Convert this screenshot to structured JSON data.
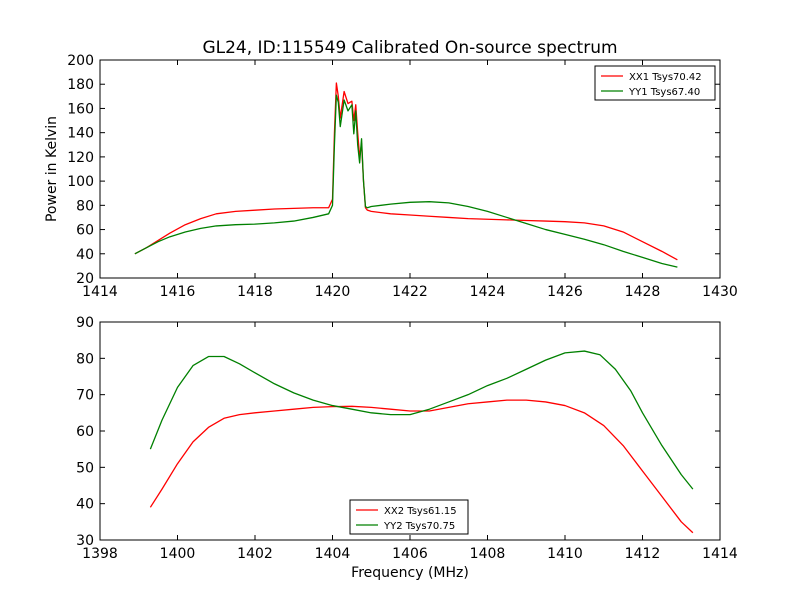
{
  "figure": {
    "title": "GL24, ID:115549 Calibrated On-source spectrum",
    "ylabel": "Power in Kelvin",
    "xlabel": "Frequency (MHz)"
  },
  "chart_data": [
    {
      "type": "line",
      "title": "GL24, ID:115549 Calibrated On-source spectrum",
      "xlabel": "",
      "ylabel": "Power in Kelvin",
      "xlim": [
        1414,
        1430
      ],
      "ylim": [
        20,
        200
      ],
      "xticks": [
        1414,
        1416,
        1418,
        1420,
        1422,
        1424,
        1426,
        1428,
        1430
      ],
      "yticks": [
        20,
        40,
        60,
        80,
        100,
        120,
        140,
        160,
        180,
        200
      ],
      "legend": "top-right",
      "grid": false,
      "series": [
        {
          "name": "XX1 Tsys70.42",
          "color": "#ff0000",
          "x": [
            1414.9,
            1415.2,
            1415.5,
            1415.8,
            1416.2,
            1416.6,
            1417.0,
            1417.5,
            1418.0,
            1418.5,
            1419.0,
            1419.5,
            1419.9,
            1420.0,
            1420.05,
            1420.1,
            1420.15,
            1420.2,
            1420.3,
            1420.4,
            1420.5,
            1420.55,
            1420.6,
            1420.65,
            1420.7,
            1420.75,
            1420.8,
            1420.85,
            1420.9,
            1421.0,
            1421.5,
            1422.0,
            1422.5,
            1423.0,
            1423.5,
            1424.0,
            1424.5,
            1425.0,
            1425.5,
            1426.0,
            1426.5,
            1427.0,
            1427.5,
            1428.0,
            1428.5,
            1428.9
          ],
          "y": [
            40,
            45,
            51,
            57,
            64,
            69,
            73,
            75,
            76,
            77,
            77.5,
            78,
            78,
            85,
            140,
            181,
            170,
            152,
            174,
            164,
            166,
            150,
            163,
            140,
            120,
            131,
            100,
            78,
            76,
            75,
            73,
            72,
            71,
            70,
            69,
            68.5,
            68,
            67.5,
            67,
            66.5,
            65.5,
            63,
            58,
            50,
            42,
            35
          ]
        },
        {
          "name": "YY1 Tsys67.40",
          "color": "#008000",
          "x": [
            1414.9,
            1415.2,
            1415.5,
            1415.8,
            1416.2,
            1416.6,
            1417.0,
            1417.5,
            1418.0,
            1418.5,
            1419.0,
            1419.5,
            1419.9,
            1420.0,
            1420.05,
            1420.1,
            1420.15,
            1420.2,
            1420.3,
            1420.4,
            1420.5,
            1420.55,
            1420.6,
            1420.65,
            1420.7,
            1420.75,
            1420.8,
            1420.85,
            1420.9,
            1421.0,
            1421.5,
            1422.0,
            1422.5,
            1423.0,
            1423.5,
            1424.0,
            1424.5,
            1425.0,
            1425.5,
            1426.0,
            1426.5,
            1427.0,
            1427.5,
            1428.0,
            1428.5,
            1428.9
          ],
          "y": [
            40,
            45,
            50,
            54,
            58,
            61,
            63,
            64,
            64.5,
            65.5,
            67,
            70,
            73,
            80,
            130,
            171,
            165,
            145,
            167,
            158,
            163,
            139,
            158,
            130,
            115,
            135,
            100,
            79,
            78,
            79,
            81,
            82.5,
            83,
            82,
            79,
            75,
            70,
            65,
            60,
            56,
            52,
            47.5,
            42,
            37,
            32,
            29
          ]
        }
      ]
    },
    {
      "type": "line",
      "title": "",
      "xlabel": "Frequency (MHz)",
      "ylabel": "",
      "xlim": [
        1398,
        1414
      ],
      "ylim": [
        30,
        90
      ],
      "xticks": [
        1398,
        1400,
        1402,
        1404,
        1406,
        1408,
        1410,
        1412,
        1414
      ],
      "yticks": [
        30,
        40,
        50,
        60,
        70,
        80,
        90
      ],
      "legend": "bottom-center",
      "grid": false,
      "series": [
        {
          "name": "XX2 Tsys61.15",
          "color": "#ff0000",
          "x": [
            1399.3,
            1399.6,
            1400.0,
            1400.4,
            1400.8,
            1401.2,
            1401.6,
            1402.0,
            1402.5,
            1403.0,
            1403.5,
            1404.0,
            1404.5,
            1405.0,
            1405.5,
            1406.0,
            1406.5,
            1407.0,
            1407.5,
            1408.0,
            1408.5,
            1409.0,
            1409.5,
            1410.0,
            1410.5,
            1411.0,
            1411.5,
            1412.0,
            1412.5,
            1413.0,
            1413.3
          ],
          "y": [
            39,
            44,
            51,
            57,
            61,
            63.5,
            64.5,
            65,
            65.5,
            66,
            66.5,
            66.7,
            66.8,
            66.5,
            66,
            65.5,
            65.5,
            66.5,
            67.5,
            68,
            68.5,
            68.5,
            68,
            67,
            65,
            61.5,
            56,
            49,
            42,
            35,
            32
          ]
        },
        {
          "name": "YY2 Tsys70.75",
          "color": "#008000",
          "x": [
            1399.3,
            1399.6,
            1400.0,
            1400.4,
            1400.8,
            1401.2,
            1401.6,
            1402.0,
            1402.5,
            1403.0,
            1403.5,
            1404.0,
            1404.5,
            1405.0,
            1405.5,
            1406.0,
            1406.5,
            1407.0,
            1407.5,
            1408.0,
            1408.5,
            1409.0,
            1409.5,
            1410.0,
            1410.5,
            1410.9,
            1411.3,
            1411.7,
            1412.0,
            1412.5,
            1413.0,
            1413.3
          ],
          "y": [
            55,
            63,
            72,
            78,
            80.5,
            80.5,
            78.5,
            76,
            73,
            70.5,
            68.5,
            67,
            66,
            65,
            64.5,
            64.5,
            66,
            68,
            70,
            72.5,
            74.5,
            77,
            79.5,
            81.5,
            82,
            81,
            77,
            71,
            65,
            56,
            48,
            44
          ]
        }
      ]
    }
  ]
}
